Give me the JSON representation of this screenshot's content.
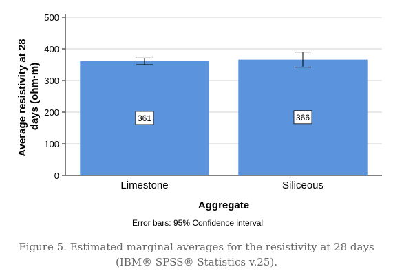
{
  "chart_data": {
    "type": "bar",
    "categories": [
      "Limestone",
      "Siliceous"
    ],
    "values": [
      361,
      366
    ],
    "ci_lower": [
      350,
      342
    ],
    "ci_upper": [
      371,
      390
    ],
    "data_labels": [
      "361",
      "366"
    ],
    "ylabel_line1": "Average resistivity at 28",
    "ylabel_line2": "days (ohm·m)",
    "xlabel": "Aggregate",
    "ylim": [
      0,
      500
    ],
    "yticks": [
      "0",
      "100",
      "200",
      "300",
      "400",
      "500"
    ],
    "grid": true,
    "bar_color": "#5b94dc",
    "note": "Error bars: 95% Confidence interval"
  },
  "caption": {
    "line1": "Figure 5. Estimated marginal averages for the resistivity at 28 days",
    "line2": "(IBM® SPSS® Statistics v.25)."
  }
}
